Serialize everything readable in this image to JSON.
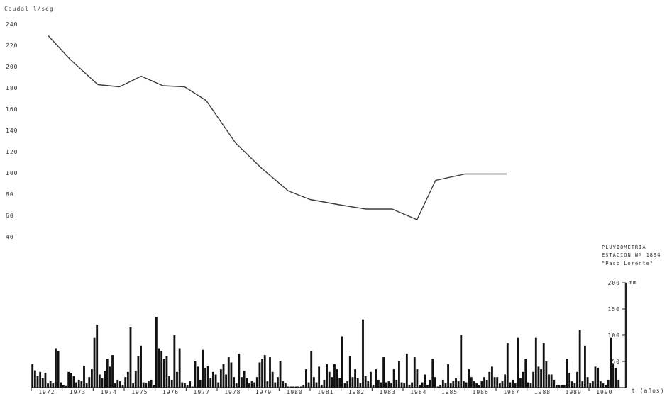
{
  "chart_data": {
    "type": "line+bar",
    "ylabel": "Caudal  l/seg",
    "xlabel_unit": "t (años)",
    "y_ticks": [
      "240",
      "220",
      "200",
      "180",
      "160",
      "140",
      "120",
      "100",
      "80",
      "60",
      "40"
    ],
    "ylim": [
      0,
      240
    ],
    "years": [
      "1972",
      "1973",
      "1974",
      "1975",
      "1976",
      "1977",
      "1978",
      "1979",
      "1980",
      "1981",
      "1982",
      "1983",
      "1984",
      "1985",
      "1986",
      "1987",
      "1988",
      "1989",
      "1990"
    ],
    "flow_series": {
      "x": [
        1972.55,
        1973.25,
        1974.15,
        1974.85,
        1975.55,
        1976.25,
        1976.95,
        1977.65,
        1978.6,
        1979.45,
        1980.3,
        1981.0,
        1981.95,
        1982.8,
        1983.65,
        1984.45,
        1985.05,
        1986.0,
        1986.8,
        1987.35
      ],
      "y": [
        229,
        207,
        183,
        181,
        191,
        182,
        181,
        168,
        128,
        104,
        83,
        75,
        70,
        66,
        66,
        56,
        93,
        99,
        99,
        99
      ]
    },
    "rain": {
      "legend_lines": [
        "PLUVIOMETRIA",
        "ESTACION Nº 1894",
        "\"Paso Lorente\""
      ],
      "scale_ticks": [
        "200",
        "150",
        "100",
        "50"
      ],
      "scale_unit": "mm",
      "ylim": [
        0,
        200
      ],
      "x_start": 1972.0,
      "x_end": 1990.0,
      "monthly_values": [
        45,
        33,
        22,
        30,
        18,
        28,
        8,
        12,
        8,
        75,
        70,
        10,
        5,
        3,
        30,
        28,
        22,
        10,
        15,
        12,
        42,
        8,
        20,
        35,
        95,
        120,
        25,
        18,
        32,
        55,
        40,
        62,
        8,
        15,
        12,
        5,
        20,
        30,
        115,
        8,
        32,
        60,
        80,
        10,
        8,
        12,
        15,
        5,
        135,
        75,
        70,
        55,
        60,
        22,
        15,
        100,
        30,
        75,
        10,
        8,
        5,
        12,
        2,
        50,
        40,
        15,
        72,
        38,
        42,
        18,
        30,
        25,
        10,
        35,
        45,
        25,
        58,
        48,
        20,
        8,
        65,
        20,
        32,
        18,
        8,
        12,
        10,
        20,
        48,
        55,
        62,
        12,
        58,
        30,
        10,
        20,
        50,
        12,
        8,
        2,
        2,
        2,
        2,
        2,
        2,
        5,
        35,
        10,
        70,
        20,
        10,
        40,
        5,
        15,
        45,
        30,
        20,
        45,
        35,
        18,
        98,
        8,
        12,
        60,
        20,
        35,
        18,
        8,
        130,
        22,
        12,
        30,
        5,
        35,
        15,
        10,
        58,
        10,
        12,
        8,
        35,
        15,
        50,
        10,
        8,
        65,
        5,
        10,
        58,
        35,
        5,
        10,
        25,
        5,
        15,
        55,
        20,
        2,
        5,
        15,
        8,
        45,
        8,
        12,
        18,
        12,
        100,
        12,
        10,
        35,
        20,
        12,
        8,
        5,
        12,
        20,
        15,
        30,
        40,
        20,
        20,
        8,
        12,
        25,
        85,
        10,
        15,
        8,
        95,
        18,
        30,
        55,
        10,
        8,
        30,
        95,
        40,
        35,
        85,
        50,
        25,
        25,
        15,
        5,
        5,
        5,
        5,
        55,
        28,
        12,
        8,
        30,
        110,
        12,
        80,
        20,
        8,
        12,
        40,
        38,
        12,
        8,
        5,
        15,
        95,
        45,
        38,
        15
      ]
    },
    "colors": {
      "line": "#3a3a3a",
      "bars": "#111111",
      "axis": "#222222"
    }
  }
}
